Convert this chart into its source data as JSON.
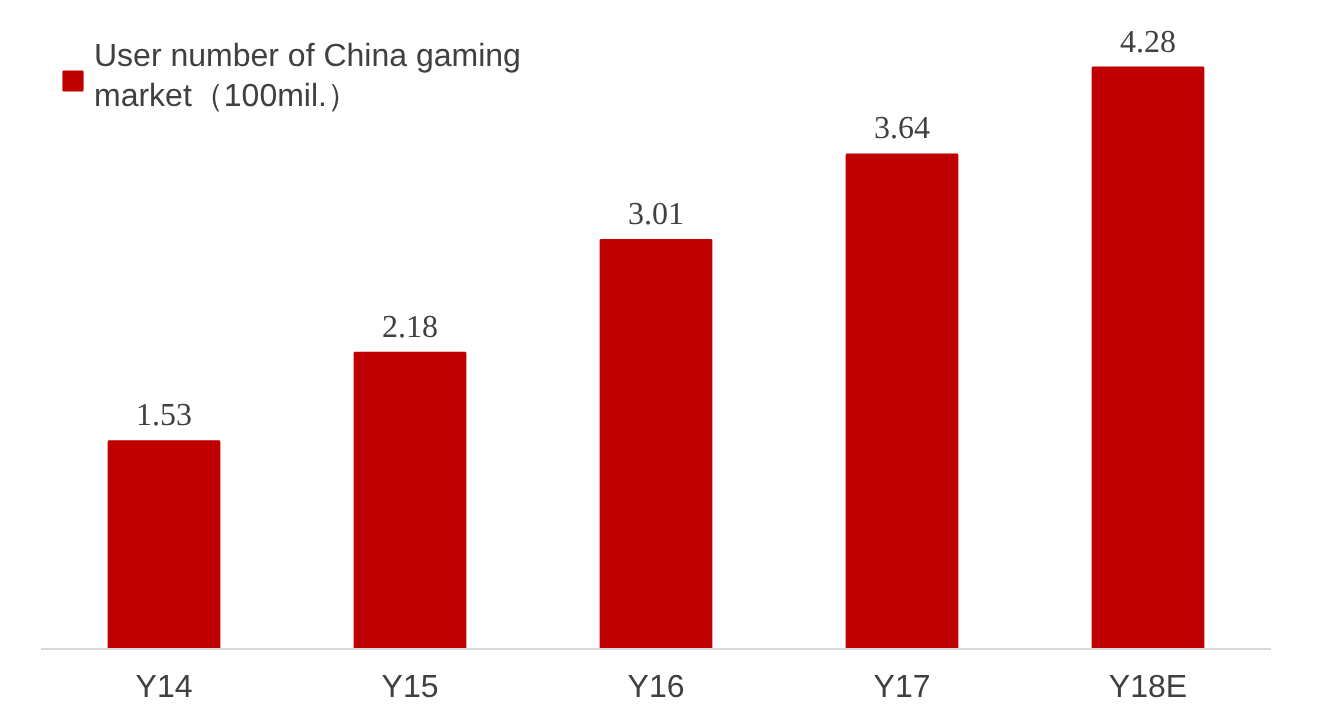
{
  "chart_data": {
    "type": "bar",
    "categories": [
      "Y14",
      "Y15",
      "Y16",
      "Y17",
      "Y18E"
    ],
    "series": [
      {
        "name": "User number of China gaming market（100mil.）",
        "color": "#c00000",
        "values": [
          1.53,
          2.18,
          3.01,
          3.64,
          4.28
        ]
      }
    ],
    "data_labels": true,
    "legend": "top left",
    "grid": false
  }
}
